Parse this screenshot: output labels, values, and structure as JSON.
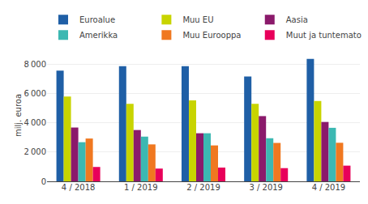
{
  "chart_data": {
    "type": "bar",
    "categories": [
      "4 / 2018",
      "1 / 2019",
      "2 / 2019",
      "3 / 2019",
      "4 / 2019"
    ],
    "series": [
      {
        "name": "Euroalue",
        "color": "#1f5fa6",
        "values": [
          7550,
          7850,
          7850,
          7150,
          8350
        ]
      },
      {
        "name": "Muu EU",
        "color": "#c8d400",
        "values": [
          5780,
          5280,
          5520,
          5290,
          5480
        ]
      },
      {
        "name": "Aasia",
        "color": "#8b1a6b",
        "values": [
          3670,
          3500,
          3280,
          4450,
          4050
        ]
      },
      {
        "name": "Amerikka",
        "color": "#3cb8b2",
        "values": [
          2670,
          3050,
          3280,
          2940,
          3650
        ]
      },
      {
        "name": "Muu Eurooppa",
        "color": "#f07820",
        "values": [
          2920,
          2520,
          2450,
          2620,
          2630
        ]
      },
      {
        "name": "Muut ja tuntematon",
        "color": "#e8005a",
        "values": [
          980,
          870,
          940,
          900,
          1070
        ]
      }
    ],
    "ylabel": "milj. euroa",
    "ylim": [
      0,
      9000
    ],
    "yticks": [
      0,
      {
        "value": 2000,
        "label": "2 000"
      },
      {
        "value": 4000,
        "label": "4 000"
      },
      {
        "value": 6000,
        "label": "6 000"
      },
      {
        "value": 8000,
        "label": "8 000"
      }
    ],
    "grid": true,
    "legend": "top"
  }
}
